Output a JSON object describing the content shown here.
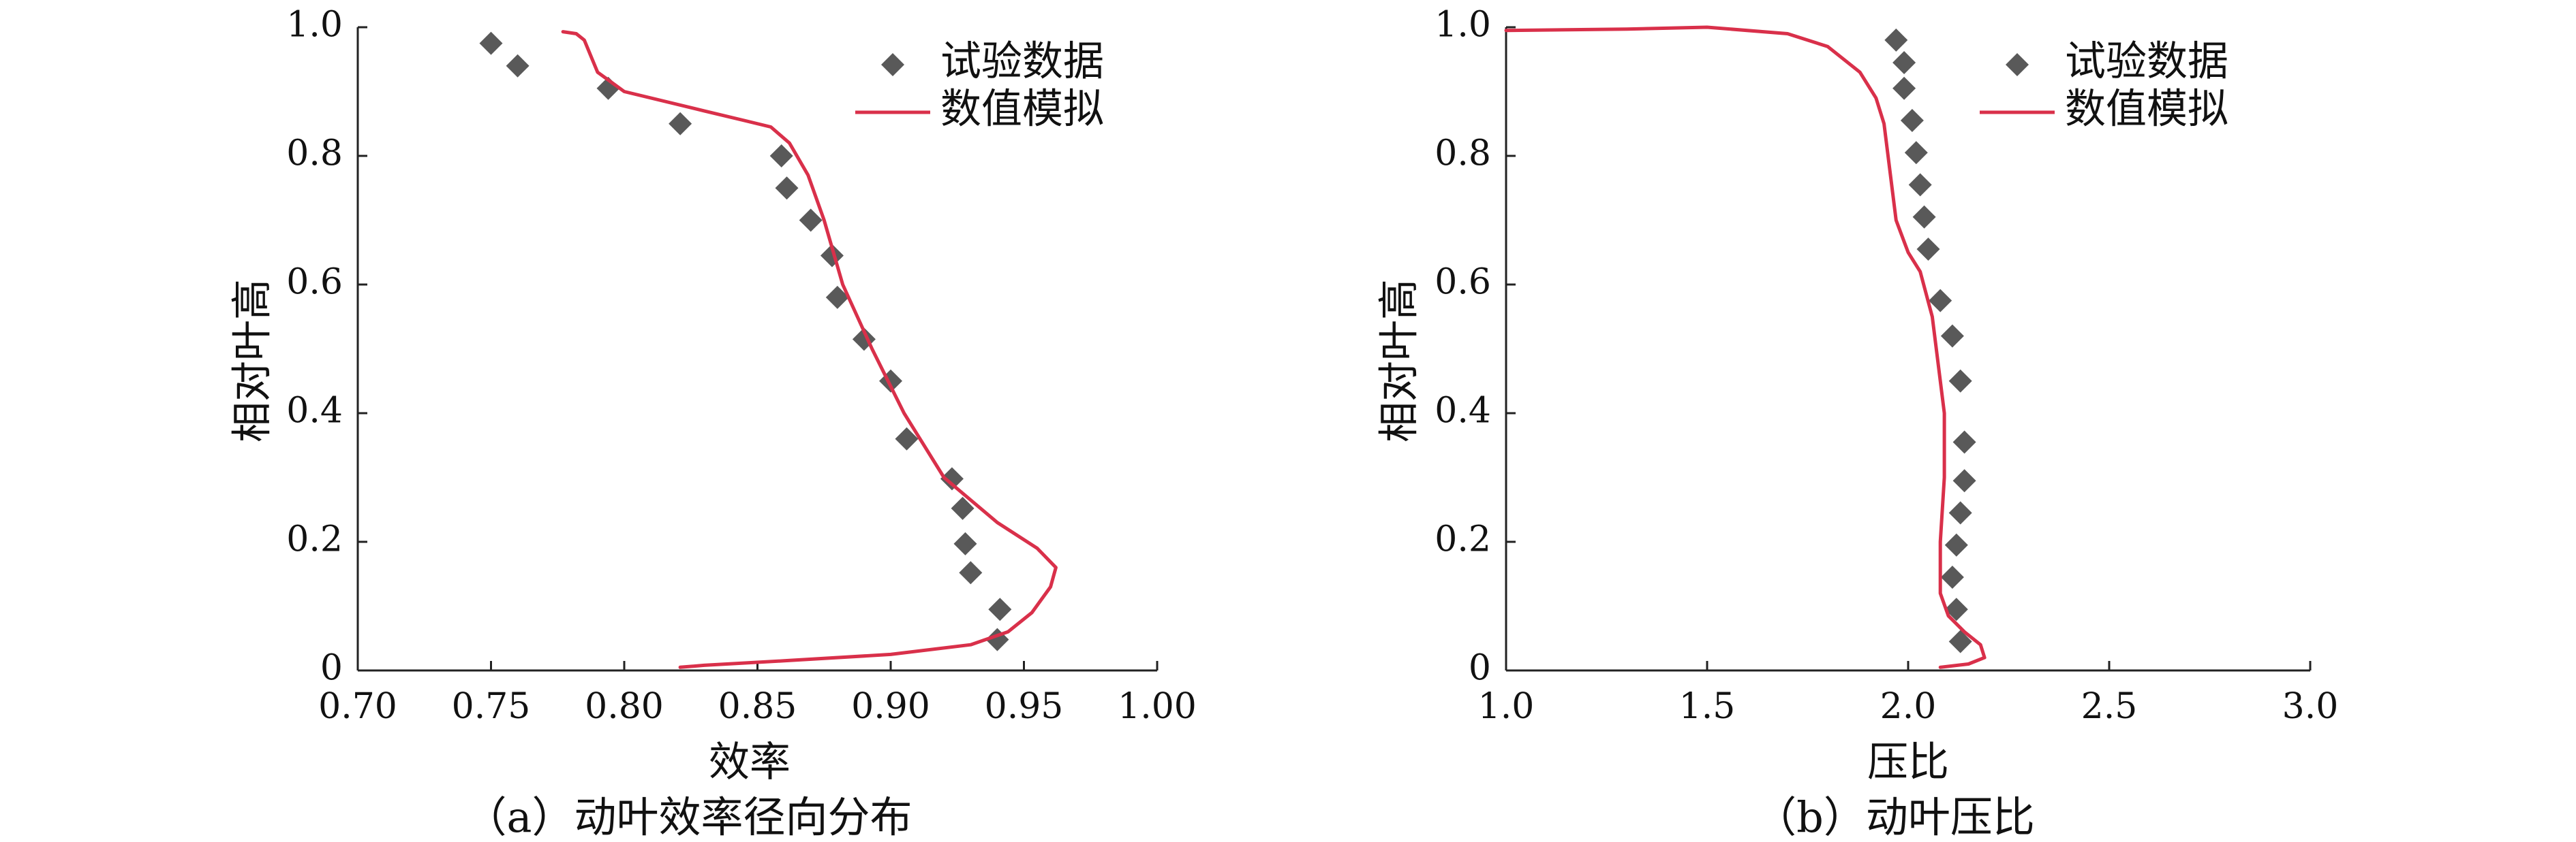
{
  "colors": {
    "experiment": "#595959",
    "simulation": "#d9304a",
    "axis": "#222222"
  },
  "chart_data": [
    {
      "type": "scatter",
      "caption": "（a）动叶效率径向分布",
      "xlabel": "效率",
      "ylabel": "相对叶高",
      "xlim": [
        0.7,
        1.0
      ],
      "ylim": [
        0,
        1.0
      ],
      "x_ticks": [
        "0.70",
        "0.75",
        "0.80",
        "0.85",
        "0.90",
        "0.95",
        "1.00"
      ],
      "y_ticks": [
        "0",
        "0.2",
        "0.4",
        "0.6",
        "0.8",
        "1.0"
      ],
      "legend_position": "top-right",
      "series": [
        {
          "name": "试验数据",
          "kind": "scatter",
          "marker": "diamond",
          "points": [
            [
              0.75,
              0.975
            ],
            [
              0.76,
              0.94
            ],
            [
              0.794,
              0.905
            ],
            [
              0.821,
              0.85
            ],
            [
              0.859,
              0.8
            ],
            [
              0.861,
              0.75
            ],
            [
              0.87,
              0.7
            ],
            [
              0.878,
              0.645
            ],
            [
              0.88,
              0.58
            ],
            [
              0.89,
              0.515
            ],
            [
              0.9,
              0.45
            ],
            [
              0.906,
              0.36
            ],
            [
              0.923,
              0.298
            ],
            [
              0.927,
              0.252
            ],
            [
              0.928,
              0.197
            ],
            [
              0.93,
              0.152
            ],
            [
              0.941,
              0.095
            ],
            [
              0.94,
              0.048
            ]
          ]
        },
        {
          "name": "数值模拟",
          "kind": "line",
          "points": [
            [
              0.821,
              0.005
            ],
            [
              0.83,
              0.008
            ],
            [
              0.86,
              0.015
            ],
            [
              0.9,
              0.025
            ],
            [
              0.93,
              0.04
            ],
            [
              0.944,
              0.06
            ],
            [
              0.953,
              0.09
            ],
            [
              0.96,
              0.13
            ],
            [
              0.962,
              0.16
            ],
            [
              0.955,
              0.19
            ],
            [
              0.94,
              0.23
            ],
            [
              0.92,
              0.3
            ],
            [
              0.905,
              0.4
            ],
            [
              0.893,
              0.5
            ],
            [
              0.882,
              0.6
            ],
            [
              0.875,
              0.7
            ],
            [
              0.869,
              0.77
            ],
            [
              0.862,
              0.82
            ],
            [
              0.855,
              0.845
            ],
            [
              0.845,
              0.855
            ],
            [
              0.83,
              0.87
            ],
            [
              0.8,
              0.9
            ],
            [
              0.79,
              0.93
            ],
            [
              0.788,
              0.95
            ],
            [
              0.785,
              0.98
            ],
            [
              0.782,
              0.99
            ],
            [
              0.777,
              0.993
            ]
          ]
        }
      ]
    },
    {
      "type": "scatter",
      "caption": "（b）动叶压比",
      "xlabel": "压比",
      "ylabel": "相对叶高",
      "xlim": [
        1.0,
        3.0
      ],
      "ylim": [
        0,
        1.0
      ],
      "x_ticks": [
        "1.0",
        "1.5",
        "2.0",
        "2.5",
        "3.0"
      ],
      "y_ticks": [
        "0",
        "0.2",
        "0.4",
        "0.6",
        "0.8",
        "1.0"
      ],
      "legend_position": "top-right",
      "series": [
        {
          "name": "试验数据",
          "kind": "scatter",
          "marker": "diamond",
          "points": [
            [
              1.97,
              0.98
            ],
            [
              1.99,
              0.945
            ],
            [
              1.99,
              0.905
            ],
            [
              2.01,
              0.855
            ],
            [
              2.02,
              0.805
            ],
            [
              2.03,
              0.755
            ],
            [
              2.04,
              0.705
            ],
            [
              2.05,
              0.655
            ],
            [
              2.08,
              0.575
            ],
            [
              2.11,
              0.52
            ],
            [
              2.13,
              0.45
            ],
            [
              2.14,
              0.355
            ],
            [
              2.14,
              0.295
            ],
            [
              2.13,
              0.245
            ],
            [
              2.12,
              0.195
            ],
            [
              2.11,
              0.145
            ],
            [
              2.12,
              0.095
            ],
            [
              2.13,
              0.045
            ]
          ]
        },
        {
          "name": "数值模拟",
          "kind": "line",
          "points": [
            [
              2.08,
              0.005
            ],
            [
              2.15,
              0.01
            ],
            [
              2.19,
              0.02
            ],
            [
              2.18,
              0.04
            ],
            [
              2.14,
              0.06
            ],
            [
              2.1,
              0.085
            ],
            [
              2.08,
              0.12
            ],
            [
              2.08,
              0.2
            ],
            [
              2.09,
              0.3
            ],
            [
              2.09,
              0.4
            ],
            [
              2.08,
              0.45
            ],
            [
              2.06,
              0.55
            ],
            [
              2.03,
              0.62
            ],
            [
              2.0,
              0.65
            ],
            [
              1.97,
              0.7
            ],
            [
              1.96,
              0.75
            ],
            [
              1.95,
              0.8
            ],
            [
              1.94,
              0.85
            ],
            [
              1.92,
              0.89
            ],
            [
              1.88,
              0.93
            ],
            [
              1.8,
              0.97
            ],
            [
              1.7,
              0.99
            ],
            [
              1.5,
              1.0
            ],
            [
              1.3,
              0.997
            ],
            [
              1.0,
              0.995
            ]
          ]
        }
      ]
    }
  ]
}
